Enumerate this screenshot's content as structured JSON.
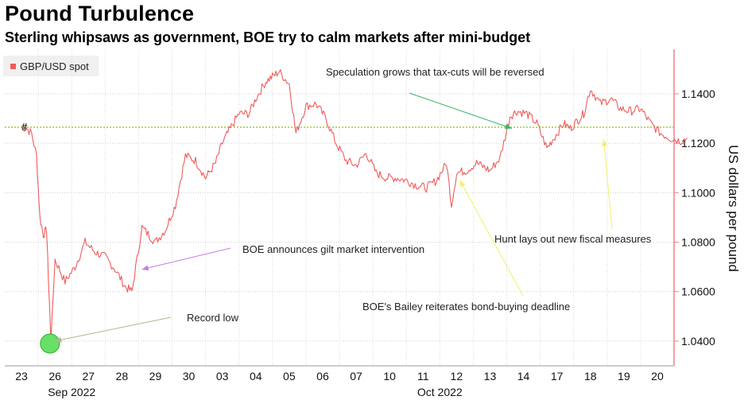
{
  "title": "Pound Turbulence",
  "subtitle": "Sterling whipsaws as government, BOE try to calm markets after mini-budget",
  "legend": {
    "label": "GBP/USD spot",
    "color": "#ef5b5b"
  },
  "colors": {
    "series": "#ef5b5b",
    "reference_line": "#9acd32",
    "axis": "#f08080"
  },
  "chart_data": {
    "type": "line",
    "series": [
      {
        "name": "GBP/USD spot"
      }
    ],
    "x_day_labels": [
      "23",
      "26",
      "27",
      "28",
      "29",
      "30",
      "03",
      "04",
      "05",
      "06",
      "07",
      "10",
      "11",
      "12",
      "13",
      "14",
      "17",
      "18",
      "19",
      "20"
    ],
    "x_month_labels": [
      "Sep 2022",
      "Oct 2022"
    ],
    "ylabel": "US dollars per pound",
    "y_ticks": [
      1.04,
      1.06,
      1.08,
      1.1,
      1.12,
      1.14
    ],
    "y_tick_labels": [
      "1.0400",
      "1.0600",
      "1.0800",
      "1.1000",
      "1.1200",
      "1.1400"
    ],
    "ylim": [
      1.03,
      1.158
    ],
    "reference_level": 1.1265,
    "reference_marker": "#",
    "keypoints": [
      [
        0,
        1.1265
      ],
      [
        0.15,
        1.126
      ],
      [
        0.3,
        1.124
      ],
      [
        0.45,
        1.115
      ],
      [
        0.55,
        1.09
      ],
      [
        0.65,
        1.083
      ],
      [
        0.75,
        1.085
      ],
      [
        0.82,
        1.06
      ],
      [
        0.88,
        1.04
      ],
      [
        1.0,
        1.073
      ],
      [
        1.3,
        1.064
      ],
      [
        1.6,
        1.07
      ],
      [
        1.9,
        1.08
      ],
      [
        2.2,
        1.076
      ],
      [
        2.5,
        1.074
      ],
      [
        2.8,
        1.069
      ],
      [
        3.1,
        1.062
      ],
      [
        3.3,
        1.06
      ],
      [
        3.6,
        1.086
      ],
      [
        4.0,
        1.08
      ],
      [
        4.3,
        1.085
      ],
      [
        4.6,
        1.095
      ],
      [
        4.9,
        1.115
      ],
      [
        5.2,
        1.113
      ],
      [
        5.5,
        1.106
      ],
      [
        5.8,
        1.112
      ],
      [
        6.0,
        1.12
      ],
      [
        6.2,
        1.125
      ],
      [
        6.5,
        1.132
      ],
      [
        6.8,
        1.132
      ],
      [
        7.0,
        1.138
      ],
      [
        7.3,
        1.145
      ],
      [
        7.5,
        1.147
      ],
      [
        7.7,
        1.149
      ],
      [
        8.0,
        1.144
      ],
      [
        8.2,
        1.124
      ],
      [
        8.5,
        1.135
      ],
      [
        8.8,
        1.136
      ],
      [
        9.1,
        1.13
      ],
      [
        9.4,
        1.12
      ],
      [
        9.7,
        1.113
      ],
      [
        10.0,
        1.111
      ],
      [
        10.3,
        1.116
      ],
      [
        10.6,
        1.108
      ],
      [
        10.9,
        1.106
      ],
      [
        11.2,
        1.106
      ],
      [
        11.5,
        1.105
      ],
      [
        11.8,
        1.103
      ],
      [
        12.1,
        1.102
      ],
      [
        12.4,
        1.105
      ],
      [
        12.7,
        1.112
      ],
      [
        12.85,
        1.095
      ],
      [
        13.0,
        1.108
      ],
      [
        13.3,
        1.109
      ],
      [
        13.6,
        1.112
      ],
      [
        14.0,
        1.109
      ],
      [
        14.3,
        1.114
      ],
      [
        14.6,
        1.131
      ],
      [
        14.8,
        1.133
      ],
      [
        15.1,
        1.132
      ],
      [
        15.4,
        1.128
      ],
      [
        15.7,
        1.118
      ],
      [
        15.9,
        1.122
      ],
      [
        16.2,
        1.128
      ],
      [
        16.4,
        1.126
      ],
      [
        16.6,
        1.129
      ],
      [
        16.8,
        1.132
      ],
      [
        17.0,
        1.142
      ],
      [
        17.3,
        1.136
      ],
      [
        17.6,
        1.138
      ],
      [
        17.9,
        1.134
      ],
      [
        18.2,
        1.133
      ],
      [
        18.5,
        1.134
      ],
      [
        18.8,
        1.128
      ],
      [
        19.1,
        1.124
      ],
      [
        19.4,
        1.122
      ],
      [
        19.7,
        1.121
      ],
      [
        19.9,
        1.122
      ]
    ],
    "record_low_marker": {
      "day_index": 0.85,
      "value": 1.039
    },
    "annotations": [
      {
        "text": "Speculation grows that tax-cuts will be reversed",
        "arrow_color": "#3cb371",
        "target": [
          14.65,
          1.126
        ]
      },
      {
        "text": "BOE announces gilt market intervention",
        "arrow_color": "#c77cdb",
        "target": [
          3.6,
          1.069
        ]
      },
      {
        "text": "Record low",
        "arrow_color": "#b5b58a",
        "target": [
          1.0,
          1.04
        ]
      },
      {
        "text": "Hunt lays out new fiscal measures",
        "arrow_color": "#f2f06b",
        "target": [
          17.4,
          1.1215
        ]
      },
      {
        "text": "BOE's Bailey reiterates bond-buying deadline",
        "arrow_color": "#f2f06b",
        "target": [
          13.1,
          1.105
        ]
      }
    ]
  }
}
